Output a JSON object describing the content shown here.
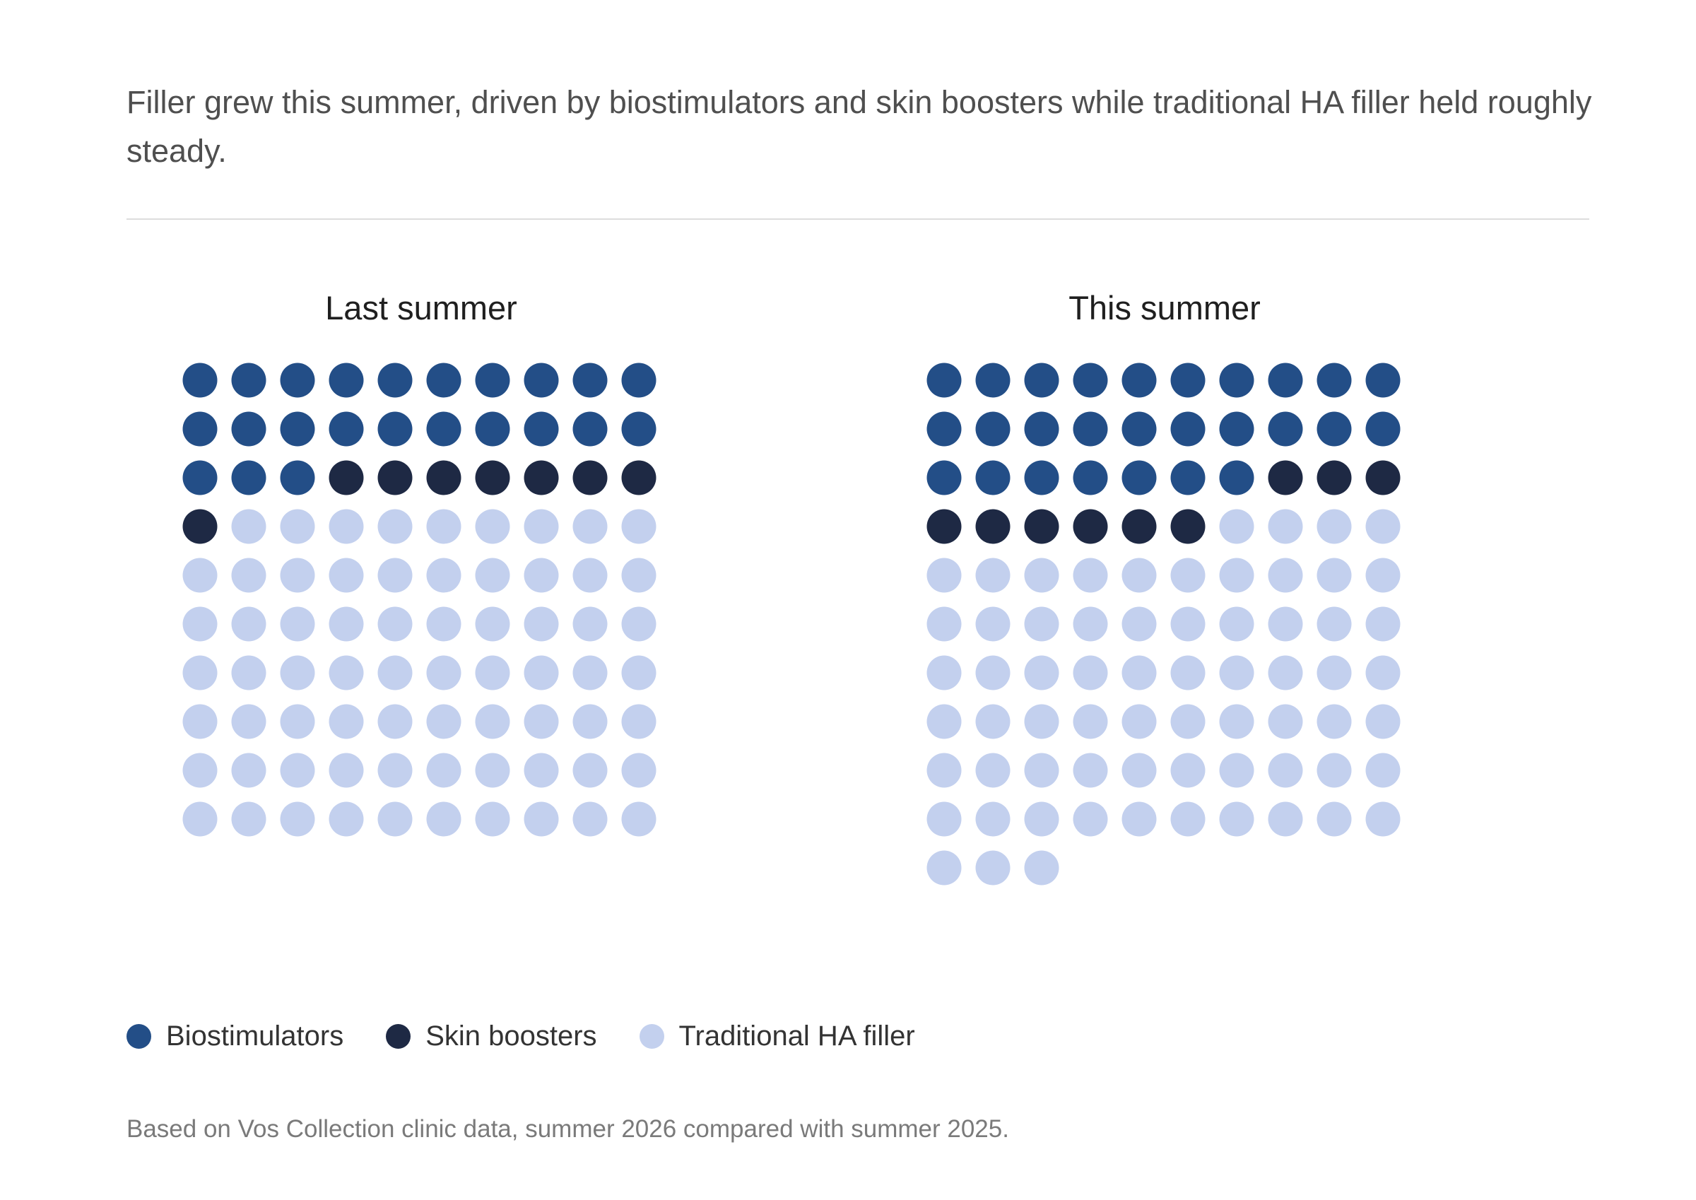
{
  "subtitle": "Filler grew this summer, driven by biostimulators and skin boosters while traditional HA filler held roughly steady.",
  "footnote": "Based on Vos Collection clinic data, summer 2026 compared with summer 2025.",
  "colors": {
    "biostimulators": "#234e87",
    "skin_boosters": "#1e2944",
    "traditional_ha_filler": "#c3d0ee"
  },
  "chart_data": {
    "type": "waffle",
    "unit": "one dot per unit",
    "dots_per_row": 10,
    "legend": [
      {
        "key": "biostimulators",
        "label": "Biostimulators"
      },
      {
        "key": "skin_boosters",
        "label": "Skin boosters"
      },
      {
        "key": "traditional_ha_filler",
        "label": "Traditional HA filler"
      }
    ],
    "legend_position": "bottom-left",
    "panels": [
      {
        "title": "Last summer",
        "values": {
          "biostimulators": 23,
          "skin_boosters": 8,
          "traditional_ha_filler": 69
        }
      },
      {
        "title": "This summer",
        "values": {
          "biostimulators": 27,
          "skin_boosters": 9,
          "traditional_ha_filler": 67
        }
      }
    ]
  }
}
